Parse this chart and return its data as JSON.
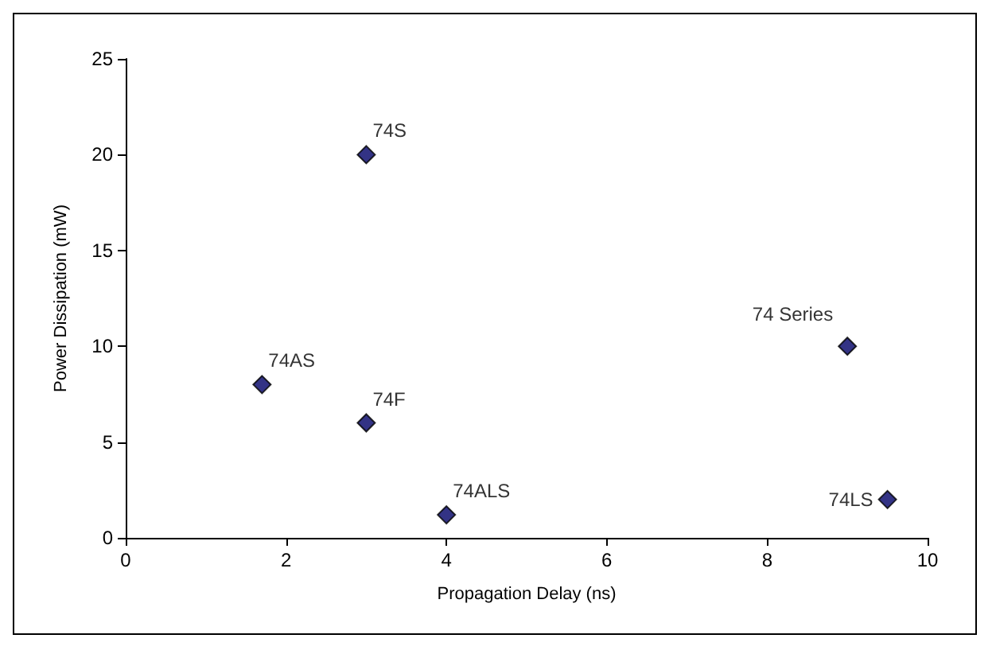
{
  "chart_data": {
    "type": "scatter",
    "xlabel": "Propagation Delay (ns)",
    "ylabel": "Power Dissipation (mW)",
    "x": [
      3,
      1.7,
      3,
      4,
      9,
      9.5
    ],
    "series": [
      {
        "color": "#000066",
        "values": [
          20,
          8,
          6,
          1.2,
          10,
          2
        ]
      }
    ],
    "annotations": [
      {
        "text": "74S",
        "x": 3,
        "y": 20
      },
      {
        "text": "74AS",
        "x": 1.7,
        "y": 8
      },
      {
        "text": "74F",
        "x": 3,
        "y": 6
      },
      {
        "text": "74ALS",
        "x": 4,
        "y": 1.2
      },
      {
        "text": "74 Series",
        "x": 9,
        "y": 10
      },
      {
        "text": "74LS",
        "x": 9.5,
        "y": 2
      }
    ],
    "xlim": [
      0,
      10
    ],
    "xticks": [
      0,
      2,
      4,
      6,
      8,
      10
    ],
    "ylim": [
      0,
      25
    ],
    "yticks": [
      0,
      5,
      10,
      15,
      20,
      25
    ],
    "grid": false,
    "marker": "diamond"
  }
}
